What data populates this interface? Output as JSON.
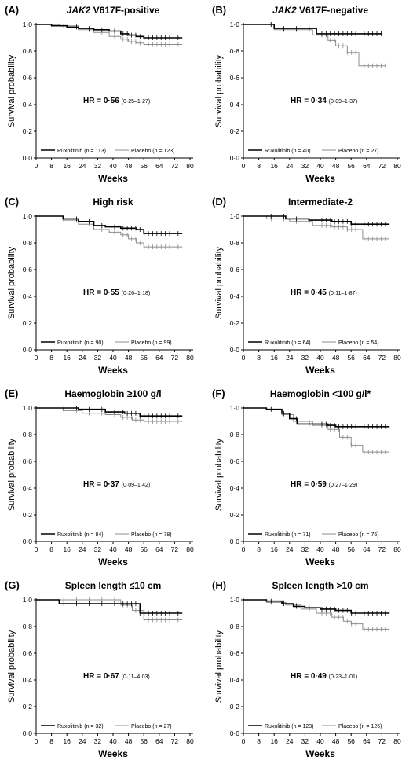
{
  "chart_data": [
    {
      "type": "line",
      "panel_label": "(A)",
      "title": "JAK2 V617F-positive",
      "title_italic_prefix": "JAK2",
      "title_rest": " V617F-positive",
      "xlabel": "Weeks",
      "ylabel": "Survival probability",
      "xlim": [
        0,
        80
      ],
      "ylim": [
        0,
        1
      ],
      "xticks": [
        "0",
        "8",
        "16",
        "24",
        "32",
        "40",
        "48",
        "56",
        "64",
        "72",
        "80"
      ],
      "yticks": [
        "0·0",
        "0·2",
        "0·4",
        "0·6",
        "0·8",
        "1·0"
      ],
      "hr_label": "HR = 0·56",
      "hr_ci": "(0·25–1·27)",
      "legend_placement": "bottom",
      "series": [
        {
          "name": "Ruxolitinib (n = 113)",
          "color": "#000000",
          "x": [
            0,
            8,
            16,
            22,
            30,
            38,
            44,
            48,
            52,
            56,
            76
          ],
          "y": [
            1.0,
            0.99,
            0.98,
            0.97,
            0.96,
            0.95,
            0.93,
            0.92,
            0.91,
            0.9,
            0.9
          ]
        },
        {
          "name": "Placebo (n = 123)",
          "color": "#8c8c8c",
          "x": [
            0,
            12,
            22,
            30,
            38,
            44,
            48,
            52,
            56,
            76
          ],
          "y": [
            1.0,
            0.99,
            0.96,
            0.94,
            0.91,
            0.89,
            0.87,
            0.86,
            0.85,
            0.85
          ]
        }
      ]
    },
    {
      "type": "line",
      "panel_label": "(B)",
      "title": "JAK2 V617F-negative",
      "title_italic_prefix": "JAK2",
      "title_rest": " V617F-negative",
      "xlabel": "Weeks",
      "ylabel": "Survival probability",
      "xlim": [
        0,
        80
      ],
      "ylim": [
        0,
        1
      ],
      "xticks": [
        "0",
        "8",
        "16",
        "24",
        "32",
        "40",
        "48",
        "56",
        "64",
        "72",
        "80"
      ],
      "yticks": [
        "0·0",
        "0·2",
        "0·4",
        "0·6",
        "0·8",
        "1·0"
      ],
      "hr_label": "HR = 0·34",
      "hr_ci": "(0·09–1·37)",
      "legend_placement": "bottom",
      "series": [
        {
          "name": "Ruxolitinib (n = 40)",
          "color": "#000000",
          "x": [
            0,
            16,
            38,
            72
          ],
          "y": [
            1.0,
            0.97,
            0.93,
            0.93
          ]
        },
        {
          "name": "Placebo (n = 27)",
          "color": "#8c8c8c",
          "x": [
            0,
            16,
            36,
            44,
            48,
            54,
            60,
            74
          ],
          "y": [
            1.0,
            0.96,
            0.92,
            0.88,
            0.84,
            0.79,
            0.69,
            0.69
          ]
        }
      ]
    },
    {
      "type": "line",
      "panel_label": "(C)",
      "title": "High risk",
      "xlabel": "Weeks",
      "ylabel": "Survival probability",
      "xlim": [
        0,
        80
      ],
      "ylim": [
        0,
        1
      ],
      "xticks": [
        "0",
        "8",
        "16",
        "24",
        "32",
        "40",
        "48",
        "56",
        "64",
        "72",
        "80"
      ],
      "yticks": [
        "0·0",
        "0·2",
        "0·4",
        "0·6",
        "0·8",
        "1·0"
      ],
      "hr_label": "HR = 0·55",
      "hr_ci": "(0·26–1·18)",
      "legend_placement": "bottom",
      "series": [
        {
          "name": "Ruxolitinib (n = 90)",
          "color": "#000000",
          "x": [
            0,
            14,
            22,
            30,
            36,
            44,
            52,
            56,
            76
          ],
          "y": [
            1.0,
            0.98,
            0.96,
            0.93,
            0.92,
            0.91,
            0.9,
            0.87,
            0.87
          ]
        },
        {
          "name": "Placebo (n = 99)",
          "color": "#8c8c8c",
          "x": [
            0,
            14,
            22,
            30,
            38,
            44,
            48,
            52,
            56,
            76
          ],
          "y": [
            1.0,
            0.97,
            0.94,
            0.9,
            0.88,
            0.86,
            0.83,
            0.8,
            0.77,
            0.77
          ]
        }
      ]
    },
    {
      "type": "line",
      "panel_label": "(D)",
      "title": "Intermediate-2",
      "xlabel": "Weeks",
      "ylabel": "Survival probability",
      "xlim": [
        0,
        80
      ],
      "ylim": [
        0,
        1
      ],
      "xticks": [
        "0",
        "8",
        "16",
        "24",
        "32",
        "40",
        "48",
        "56",
        "64",
        "72",
        "80"
      ],
      "yticks": [
        "0·0",
        "0·2",
        "0·4",
        "0·6",
        "0·8",
        "1·0"
      ],
      "hr_label": "HR = 0·45",
      "hr_ci": "(0·11–1·87)",
      "legend_placement": "bottom",
      "series": [
        {
          "name": "Ruxolitinib (n = 64)",
          "color": "#000000",
          "x": [
            0,
            22,
            34,
            46,
            56,
            76
          ],
          "y": [
            1.0,
            0.98,
            0.97,
            0.96,
            0.94,
            0.94
          ]
        },
        {
          "name": "Placebo (n = 54)",
          "color": "#8c8c8c",
          "x": [
            0,
            12,
            24,
            36,
            46,
            54,
            62,
            76
          ],
          "y": [
            1.0,
            0.98,
            0.96,
            0.93,
            0.92,
            0.9,
            0.83,
            0.83
          ]
        }
      ]
    },
    {
      "type": "line",
      "panel_label": "(E)",
      "title": "Haemoglobin ≥100 g/l",
      "xlabel": "Weeks",
      "ylabel": "Survival probability",
      "xlim": [
        0,
        80
      ],
      "ylim": [
        0,
        1
      ],
      "xticks": [
        "0",
        "8",
        "16",
        "24",
        "32",
        "40",
        "48",
        "56",
        "64",
        "72",
        "80"
      ],
      "yticks": [
        "0·0",
        "0·2",
        "0·4",
        "0·6",
        "0·8",
        "1·0"
      ],
      "hr_label": "HR = 0·37",
      "hr_ci": "(0·09–1·42)",
      "legend_placement": "bottom",
      "series": [
        {
          "name": "Ruxolitinib (n = 84)",
          "color": "#000000",
          "x": [
            0,
            22,
            36,
            46,
            54,
            76
          ],
          "y": [
            1.0,
            0.99,
            0.97,
            0.96,
            0.94,
            0.94
          ]
        },
        {
          "name": "Placebo (n = 78)",
          "color": "#8c8c8c",
          "x": [
            0,
            14,
            24,
            36,
            44,
            50,
            56,
            76
          ],
          "y": [
            1.0,
            0.98,
            0.96,
            0.95,
            0.93,
            0.91,
            0.9,
            0.9
          ]
        }
      ]
    },
    {
      "type": "line",
      "panel_label": "(F)",
      "title": "Haemoglobin <100 g/l*",
      "xlabel": "Weeks",
      "ylabel": "Survival probability",
      "xlim": [
        0,
        80
      ],
      "ylim": [
        0,
        1
      ],
      "xticks": [
        "0",
        "8",
        "16",
        "24",
        "32",
        "40",
        "48",
        "56",
        "64",
        "72",
        "80"
      ],
      "yticks": [
        "0·0",
        "0·2",
        "0·4",
        "0·6",
        "0·8",
        "1·0"
      ],
      "hr_label": "HR = 0·59",
      "hr_ci": "(0·27–1·29)",
      "legend_placement": "bottom",
      "series": [
        {
          "name": "Ruxolitinib (n = 71)",
          "color": "#000000",
          "x": [
            0,
            12,
            20,
            24,
            28,
            44,
            48,
            76
          ],
          "y": [
            1.0,
            0.99,
            0.96,
            0.92,
            0.88,
            0.87,
            0.86,
            0.86
          ]
        },
        {
          "name": "Placebo (n = 76)",
          "color": "#8c8c8c",
          "x": [
            0,
            12,
            20,
            26,
            36,
            44,
            50,
            56,
            62,
            76
          ],
          "y": [
            1.0,
            0.99,
            0.95,
            0.9,
            0.87,
            0.84,
            0.78,
            0.72,
            0.67,
            0.67
          ]
        }
      ]
    },
    {
      "type": "line",
      "panel_label": "(G)",
      "title": "Spleen length ≤10 cm",
      "xlabel": "Weeks",
      "ylabel": "Survival probability",
      "xlim": [
        0,
        80
      ],
      "ylim": [
        0,
        1
      ],
      "xticks": [
        "0",
        "8",
        "16",
        "24",
        "32",
        "40",
        "48",
        "56",
        "64",
        "72",
        "80"
      ],
      "yticks": [
        "0·0",
        "0·2",
        "0·4",
        "0·6",
        "0·8",
        "1·0"
      ],
      "hr_label": "HR = 0·67",
      "hr_ci": "(0·11–4·03)",
      "legend_placement": "bottom",
      "series": [
        {
          "name": "Ruxolitinib (n = 32)",
          "color": "#000000",
          "x": [
            0,
            12,
            52,
            54,
            76
          ],
          "y": [
            1.0,
            0.97,
            0.97,
            0.9,
            0.9
          ]
        },
        {
          "name": "Placebo (n = 27)",
          "color": "#8c8c8c",
          "x": [
            0,
            44,
            50,
            56,
            76
          ],
          "y": [
            1.0,
            0.96,
            0.92,
            0.85,
            0.85
          ]
        }
      ]
    },
    {
      "type": "line",
      "panel_label": "(H)",
      "title": "Spleen length >10 cm",
      "xlabel": "Weeks",
      "ylabel": "Survival probability",
      "xlim": [
        0,
        80
      ],
      "ylim": [
        0,
        1
      ],
      "xticks": [
        "0",
        "8",
        "16",
        "24",
        "32",
        "40",
        "48",
        "56",
        "64",
        "72",
        "80"
      ],
      "yticks": [
        "0·0",
        "0·2",
        "0·4",
        "0·6",
        "0·8",
        "1·0"
      ],
      "hr_label": "HR = 0·49",
      "hr_ci": "(0·23–1·01)",
      "legend_placement": "bottom",
      "series": [
        {
          "name": "Ruxolitinib (n = 123)",
          "color": "#000000",
          "x": [
            0,
            12,
            20,
            26,
            32,
            40,
            48,
            56,
            76
          ],
          "y": [
            1.0,
            0.99,
            0.97,
            0.95,
            0.94,
            0.93,
            0.92,
            0.9,
            0.9
          ]
        },
        {
          "name": "Placebo (n = 126)",
          "color": "#8c8c8c",
          "x": [
            0,
            12,
            22,
            30,
            38,
            46,
            52,
            56,
            62,
            76
          ],
          "y": [
            1.0,
            0.98,
            0.96,
            0.93,
            0.9,
            0.87,
            0.84,
            0.82,
            0.78,
            0.78
          ]
        }
      ]
    }
  ]
}
